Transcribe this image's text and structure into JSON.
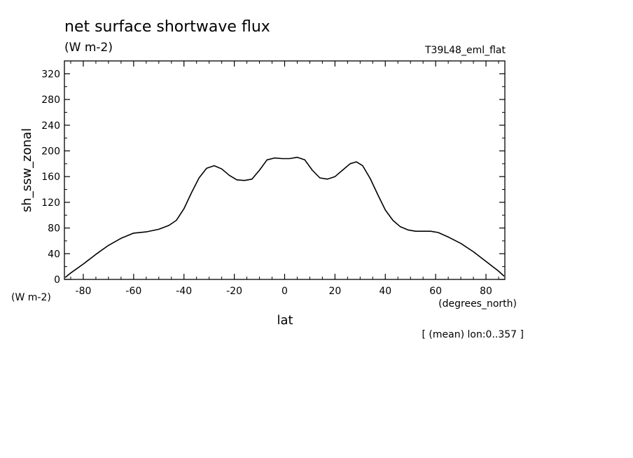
{
  "chart_data": {
    "type": "line",
    "title": "net surface shortwave flux",
    "subtitle": "(W m-2)",
    "run_label": "T39L48_eml_flat",
    "xlabel": "lat",
    "x_units": "(degrees_north)",
    "ylabel": "sh_ssw_zonal",
    "y_units": "(W m-2)",
    "footnote": "[ (mean) lon:0..357 ]",
    "xlim": [
      -87.5,
      87.5
    ],
    "ylim": [
      0,
      340
    ],
    "x_ticks": [
      -80,
      -60,
      -40,
      -20,
      0,
      20,
      40,
      60,
      80
    ],
    "x_tick_labels": [
      "-80",
      "-60",
      "-40",
      "-20",
      "0",
      "20",
      "40",
      "60",
      "80"
    ],
    "y_ticks": [
      0,
      40,
      80,
      120,
      160,
      200,
      240,
      280,
      320
    ],
    "y_tick_labels": [
      "0",
      "40",
      "80",
      "120",
      "160",
      "200",
      "240",
      "280",
      "320"
    ],
    "grid": false,
    "series": [
      {
        "x": [
          -87.2,
          -85,
          -80,
          -75,
          -70,
          -65,
          -60,
          -55,
          -50,
          -46,
          -43,
          -40,
          -37,
          -34,
          -31,
          -28,
          -25,
          -22,
          -19,
          -16,
          -13,
          -10,
          -7,
          -4,
          -1,
          2,
          5,
          8,
          11,
          14,
          17,
          20,
          23,
          26,
          28.5,
          31,
          34,
          37,
          40,
          43,
          46,
          49,
          52,
          55,
          58,
          61,
          65,
          70,
          75,
          80,
          85,
          87.2
        ],
        "y": [
          3,
          10,
          24,
          39,
          53,
          64,
          72,
          74,
          78,
          84,
          92,
          110,
          135,
          158,
          173,
          177,
          172,
          162,
          155,
          154,
          156,
          170,
          186,
          189,
          188,
          188,
          190,
          186,
          170,
          158,
          156,
          160,
          170,
          180,
          183,
          177,
          157,
          132,
          108,
          92,
          82,
          77,
          75,
          75,
          75,
          73,
          66,
          56,
          43,
          28,
          13,
          5
        ]
      }
    ]
  }
}
